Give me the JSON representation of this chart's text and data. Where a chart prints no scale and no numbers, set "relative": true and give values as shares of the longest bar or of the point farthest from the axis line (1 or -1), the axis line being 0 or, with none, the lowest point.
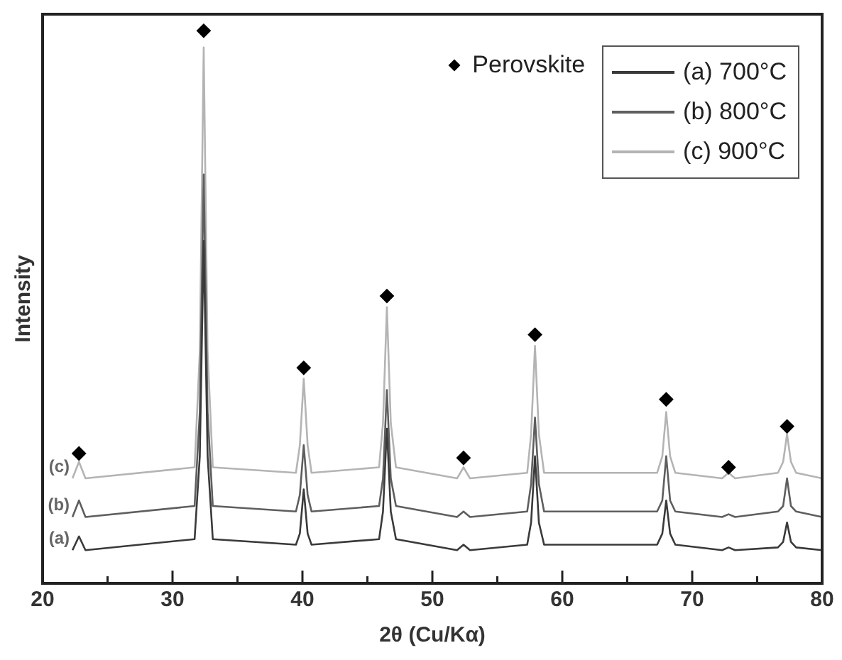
{
  "chart_data": {
    "type": "line",
    "xlabel": "2θ (Cu/Kα)",
    "ylabel": "Intensity",
    "relative": true,
    "legend": "top right",
    "tick_labels": "x",
    "grid": false,
    "xlim": [
      20,
      80
    ],
    "xticks": [
      20,
      {
        "value": 25,
        "label": null
      },
      30,
      {
        "value": 35,
        "label": null
      },
      40,
      {
        "value": 45,
        "label": null
      },
      50,
      {
        "value": 55,
        "label": null
      },
      60,
      {
        "value": 65,
        "label": null
      },
      70,
      {
        "value": 75,
        "label": null
      },
      80
    ],
    "x": [
      22.3,
      22.8,
      23.3,
      31.7,
      32.1,
      32.4,
      32.7,
      33.1,
      39.5,
      39.8,
      40.1,
      40.4,
      40.7,
      45.9,
      46.2,
      46.5,
      46.8,
      47.2,
      51.9,
      52.4,
      52.9,
      57.3,
      57.6,
      57.9,
      58.2,
      58.6,
      67.3,
      67.7,
      68.0,
      68.3,
      68.7,
      72.3,
      72.8,
      73.3,
      76.6,
      77.0,
      77.3,
      77.6,
      78.0,
      80.0
    ],
    "series": [
      {
        "name": "(a) 700°C",
        "color": "#3a3a3a",
        "values": [
          0.06,
          0.085,
          0.06,
          0.08,
          0.23,
          0.62,
          0.23,
          0.08,
          0.07,
          0.09,
          0.17,
          0.09,
          0.07,
          0.08,
          0.13,
          0.28,
          0.13,
          0.08,
          0.06,
          0.07,
          0.06,
          0.07,
          0.11,
          0.23,
          0.11,
          0.07,
          0.07,
          0.09,
          0.15,
          0.09,
          0.07,
          0.06,
          0.065,
          0.06,
          0.065,
          0.075,
          0.11,
          0.075,
          0.065,
          0.06
        ]
      },
      {
        "name": "(b) 800°C",
        "color": "#5e5e5e",
        "values": [
          0.12,
          0.15,
          0.12,
          0.14,
          0.31,
          0.74,
          0.31,
          0.14,
          0.13,
          0.16,
          0.25,
          0.16,
          0.13,
          0.14,
          0.19,
          0.35,
          0.19,
          0.14,
          0.12,
          0.13,
          0.12,
          0.13,
          0.18,
          0.3,
          0.18,
          0.13,
          0.13,
          0.15,
          0.23,
          0.15,
          0.13,
          0.12,
          0.125,
          0.12,
          0.13,
          0.14,
          0.19,
          0.14,
          0.13,
          0.12
        ]
      },
      {
        "name": "(c) 900°C",
        "color": "#b4b4b4",
        "values": [
          0.19,
          0.22,
          0.19,
          0.21,
          0.42,
          0.97,
          0.42,
          0.21,
          0.2,
          0.25,
          0.37,
          0.25,
          0.2,
          0.21,
          0.29,
          0.5,
          0.29,
          0.21,
          0.19,
          0.21,
          0.19,
          0.2,
          0.27,
          0.43,
          0.27,
          0.2,
          0.2,
          0.23,
          0.31,
          0.23,
          0.2,
          0.19,
          0.2,
          0.19,
          0.2,
          0.22,
          0.27,
          0.22,
          0.2,
          0.19
        ]
      },
      {
        "name": "Perovskite",
        "type": "scatter",
        "marker": "diamond",
        "color": "#000000",
        "x": [
          22.8,
          32.4,
          40.1,
          46.5,
          52.4,
          57.9,
          68.0,
          72.8,
          77.3
        ],
        "values": [
          0.235,
          1,
          0.39,
          0.52,
          0.227,
          0.45,
          0.333,
          0.21,
          0.284
        ]
      }
    ],
    "annotations": [
      "(a)",
      "(b)",
      "(c)"
    ]
  }
}
